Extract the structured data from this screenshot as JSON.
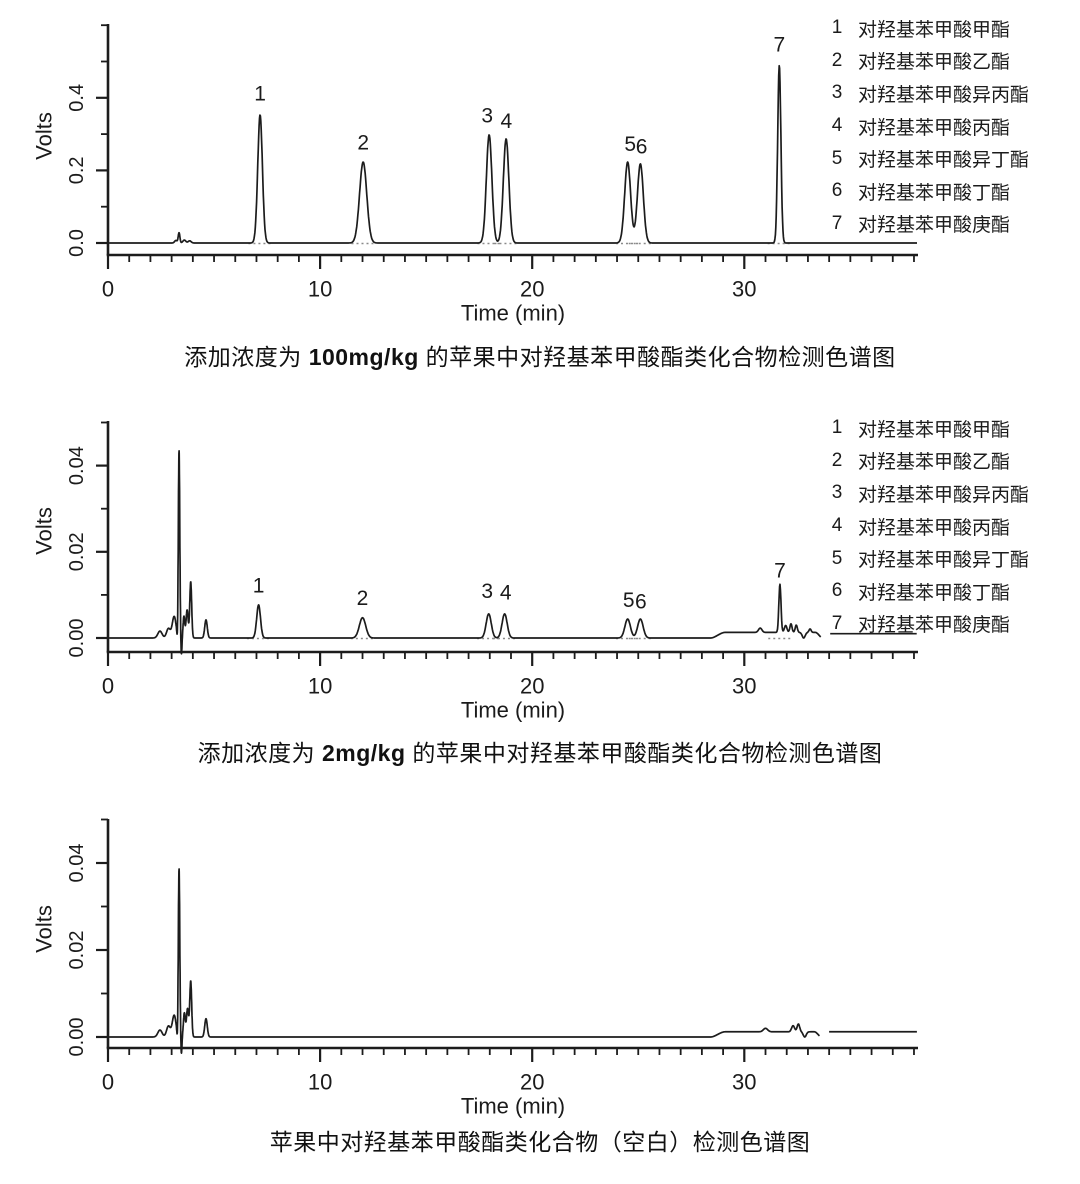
{
  "figure": {
    "background": "#ffffff",
    "trace_color": "#1c1c1c",
    "axis_color": "#1c1c1c",
    "text_color": "#1b1b1b",
    "integration_mark_color": "#8a8a8a"
  },
  "chart_data": [
    {
      "type": "line",
      "title": "添加浓度为 100mg/kg 的苹果中对羟基苯甲酸酯类化合物检测色谱图",
      "caption": {
        "prefix": "添加浓度为 ",
        "emphasis": "100mg/kg",
        "suffix": " 的苹果中对羟基苯甲酸酯类化合物检测色谱图"
      },
      "xlabel": "Time (min)",
      "ylabel": "Volts",
      "xlim": [
        0,
        38.2
      ],
      "ylim": [
        -0.033,
        0.605
      ],
      "xticks": {
        "major": [
          0,
          10,
          20,
          30
        ],
        "labels": [
          "0",
          "10",
          "20",
          "30"
        ],
        "minor_step": 1,
        "minor_max": 38
      },
      "yticks": {
        "major": [
          0.0,
          0.2,
          0.4
        ],
        "labels": [
          "0.0",
          "0.2",
          "0.4"
        ],
        "minor": [
          0.1,
          0.3,
          0.5,
          0.6
        ]
      },
      "legend": [
        {
          "num": "1",
          "name": "对羟基苯甲酸甲酯"
        },
        {
          "num": "2",
          "name": "对羟基苯甲酸乙酯"
        },
        {
          "num": "3",
          "name": "对羟基苯甲酸异丙酯"
        },
        {
          "num": "4",
          "name": "对羟基苯甲酸丙酯"
        },
        {
          "num": "5",
          "name": "对羟基苯甲酸异丁酯"
        },
        {
          "num": "6",
          "name": "对羟基苯甲酸丁酯"
        },
        {
          "num": "7",
          "name": "对羟基苯甲酸庚酯"
        }
      ],
      "peaks": [
        {
          "label": "1",
          "t_min": 7.17,
          "height_v": 0.353,
          "sigma": 0.11
        },
        {
          "label": "2",
          "t_min": 12.03,
          "height_v": 0.223,
          "sigma": 0.17
        },
        {
          "label": "3",
          "t_min": 17.97,
          "height_v": 0.298,
          "sigma": 0.13
        },
        {
          "label": "4",
          "t_min": 18.77,
          "height_v": 0.287,
          "sigma": 0.13
        },
        {
          "label": "5",
          "t_min": 24.5,
          "height_v": 0.223,
          "sigma": 0.14
        },
        {
          "label": "6",
          "t_min": 25.1,
          "height_v": 0.218,
          "sigma": 0.14
        },
        {
          "label": "7",
          "t_min": 31.65,
          "height_v": 0.49,
          "sigma": 0.075
        }
      ],
      "noise": [
        {
          "t_min": 3.2,
          "height_v": 0.007,
          "sigma": 0.06
        },
        {
          "t_min": 3.35,
          "height_v": 0.028,
          "sigma": 0.04
        },
        {
          "t_min": 3.6,
          "height_v": 0.008,
          "sigma": 0.07
        },
        {
          "t_min": 3.85,
          "height_v": 0.006,
          "sigma": 0.07
        }
      ],
      "humps": [],
      "segments": [
        {
          "t0": 0.05,
          "t1": 38.15,
          "offset_v": 0
        }
      ],
      "peak_labels": [
        {
          "text": "1",
          "t_min": 7.17,
          "v": 0.41
        },
        {
          "text": "2",
          "t_min": 12.03,
          "v": 0.275
        },
        {
          "text": "3",
          "t_min": 17.88,
          "v": 0.35
        },
        {
          "text": "4",
          "t_min": 18.78,
          "v": 0.335
        },
        {
          "text": "5",
          "t_min": 24.62,
          "v": 0.272
        },
        {
          "text": "6",
          "t_min": 25.16,
          "v": 0.265
        },
        {
          "text": "7",
          "t_min": 31.65,
          "v": 0.545
        }
      ]
    },
    {
      "type": "line",
      "title": "添加浓度为 2mg/kg 的苹果中对羟基苯甲酸酯类化合物检测色谱图",
      "caption": {
        "prefix": "添加浓度为 ",
        "emphasis": "2mg/kg",
        "suffix": " 的苹果中对羟基苯甲酸酯类化合物检测色谱图"
      },
      "xlabel": "Time (min)",
      "ylabel": "Volts",
      "xlim": [
        0,
        38.2
      ],
      "ylim": [
        -0.0032,
        0.0503
      ],
      "xticks": {
        "major": [
          0,
          10,
          20,
          30
        ],
        "labels": [
          "0",
          "10",
          "20",
          "30"
        ],
        "minor_step": 1,
        "minor_max": 38
      },
      "yticks": {
        "major": [
          0.0,
          0.02,
          0.04
        ],
        "labels": [
          "0.00",
          "0.02",
          "0.04"
        ],
        "minor": [
          0.01,
          0.03,
          0.05
        ]
      },
      "legend": [
        {
          "num": "1",
          "name": "对羟基苯甲酸甲酯"
        },
        {
          "num": "2",
          "name": "对羟基苯甲酸乙酯"
        },
        {
          "num": "3",
          "name": "对羟基苯甲酸异丙酯"
        },
        {
          "num": "4",
          "name": "对羟基苯甲酸丙酯"
        },
        {
          "num": "5",
          "name": "对羟基苯甲酸异丁酯"
        },
        {
          "num": "6",
          "name": "对羟基苯甲酸丁酯"
        },
        {
          "num": "7",
          "name": "对羟基苯甲酸庚酯"
        }
      ],
      "peaks": [
        {
          "label": "1",
          "t_min": 7.1,
          "height_v": 0.0077,
          "sigma": 0.09
        },
        {
          "label": "2",
          "t_min": 12.0,
          "height_v": 0.0047,
          "sigma": 0.15
        },
        {
          "label": "3",
          "t_min": 17.95,
          "height_v": 0.0056,
          "sigma": 0.12
        },
        {
          "label": "4",
          "t_min": 18.7,
          "height_v": 0.0056,
          "sigma": 0.12
        },
        {
          "label": "5",
          "t_min": 24.5,
          "height_v": 0.0044,
          "sigma": 0.13
        },
        {
          "label": "6",
          "t_min": 25.1,
          "height_v": 0.0044,
          "sigma": 0.13
        },
        {
          "label": "7",
          "t_min": 31.68,
          "height_v": 0.0112,
          "sigma": 0.05
        }
      ],
      "noise": [
        {
          "t_min": 2.45,
          "height_v": 0.0016,
          "sigma": 0.1
        },
        {
          "t_min": 2.85,
          "height_v": 0.0022,
          "sigma": 0.09
        },
        {
          "t_min": 3.12,
          "height_v": 0.005,
          "sigma": 0.09
        },
        {
          "t_min": 3.28,
          "height_v": -0.003,
          "sigma": 0.025
        },
        {
          "t_min": 3.35,
          "height_v": 0.0433,
          "sigma": 0.035
        },
        {
          "t_min": 3.46,
          "height_v": -0.004,
          "sigma": 0.025
        },
        {
          "t_min": 3.58,
          "height_v": 0.005,
          "sigma": 0.04
        },
        {
          "t_min": 3.73,
          "height_v": 0.0065,
          "sigma": 0.05
        },
        {
          "t_min": 3.9,
          "height_v": 0.013,
          "sigma": 0.045
        },
        {
          "t_min": 4.62,
          "height_v": 0.0042,
          "sigma": 0.06
        },
        {
          "t_min": 30.75,
          "height_v": 0.001,
          "sigma": 0.08
        },
        {
          "t_min": 31.95,
          "height_v": 0.0016,
          "sigma": 0.06
        },
        {
          "t_min": 32.2,
          "height_v": 0.002,
          "sigma": 0.05
        },
        {
          "t_min": 32.45,
          "height_v": 0.0017,
          "sigma": 0.05
        },
        {
          "t_min": 32.8,
          "height_v": -0.0013,
          "sigma": 0.07
        },
        {
          "t_min": 33.1,
          "height_v": 0.0008,
          "sigma": 0.05
        }
      ],
      "humps": [
        {
          "t0": 28.4,
          "t1": 33.35,
          "height_v": 0.0013
        }
      ],
      "segments": [
        {
          "t0": 0.05,
          "t1": 33.62,
          "offset_v": 0
        },
        {
          "t0": 34.05,
          "t1": 38.15,
          "offset_v": 0.001
        }
      ],
      "peak_labels": [
        {
          "text": "1",
          "t_min": 7.1,
          "v": 0.0121
        },
        {
          "text": "2",
          "t_min": 12.0,
          "v": 0.0092
        },
        {
          "text": "3",
          "t_min": 17.88,
          "v": 0.0108
        },
        {
          "text": "4",
          "t_min": 18.75,
          "v": 0.0104
        },
        {
          "text": "5",
          "t_min": 24.55,
          "v": 0.0087
        },
        {
          "text": "6",
          "t_min": 25.12,
          "v": 0.0084
        },
        {
          "text": "7",
          "t_min": 31.68,
          "v": 0.0156
        }
      ]
    },
    {
      "type": "line",
      "title": "苹果中对羟基苯甲酸酯类化合物（空白）检测色谱图",
      "caption": {
        "prefix": "苹果中对羟基苯甲酸酯类化合物（空白）检测色谱图",
        "emphasis": "",
        "suffix": ""
      },
      "xlabel": "Time (min)",
      "ylabel": "Volts",
      "xlim": [
        0,
        38.2
      ],
      "ylim": [
        -0.0032,
        0.0503
      ],
      "xticks": {
        "major": [
          0,
          10,
          20,
          30
        ],
        "labels": [
          "0",
          "10",
          "20",
          "30"
        ],
        "minor_step": 1,
        "minor_max": 38
      },
      "yticks": {
        "major": [
          0.0,
          0.02,
          0.04
        ],
        "labels": [
          "0.00",
          "0.02",
          "0.04"
        ],
        "minor": [
          0.01,
          0.03,
          0.05
        ]
      },
      "legend": [],
      "peaks": [],
      "noise": [
        {
          "t_min": 2.45,
          "height_v": 0.0016,
          "sigma": 0.1
        },
        {
          "t_min": 2.85,
          "height_v": 0.0025,
          "sigma": 0.09
        },
        {
          "t_min": 3.12,
          "height_v": 0.005,
          "sigma": 0.09
        },
        {
          "t_min": 3.28,
          "height_v": -0.003,
          "sigma": 0.025
        },
        {
          "t_min": 3.35,
          "height_v": 0.0385,
          "sigma": 0.035
        },
        {
          "t_min": 3.46,
          "height_v": -0.004,
          "sigma": 0.025
        },
        {
          "t_min": 3.6,
          "height_v": 0.0055,
          "sigma": 0.045
        },
        {
          "t_min": 3.75,
          "height_v": 0.0065,
          "sigma": 0.05
        },
        {
          "t_min": 3.9,
          "height_v": 0.0128,
          "sigma": 0.045
        },
        {
          "t_min": 4.62,
          "height_v": 0.0042,
          "sigma": 0.06
        },
        {
          "t_min": 31.0,
          "height_v": 0.0008,
          "sigma": 0.1
        },
        {
          "t_min": 32.3,
          "height_v": 0.0014,
          "sigma": 0.07
        },
        {
          "t_min": 32.55,
          "height_v": 0.0018,
          "sigma": 0.06
        },
        {
          "t_min": 32.85,
          "height_v": -0.0012,
          "sigma": 0.07
        }
      ],
      "humps": [
        {
          "t0": 28.4,
          "t1": 33.3,
          "height_v": 0.0012
        }
      ],
      "segments": [
        {
          "t0": 0.05,
          "t1": 33.55,
          "offset_v": 0
        },
        {
          "t0": 34.0,
          "t1": 38.15,
          "offset_v": 0.0012
        }
      ],
      "peak_labels": []
    }
  ]
}
